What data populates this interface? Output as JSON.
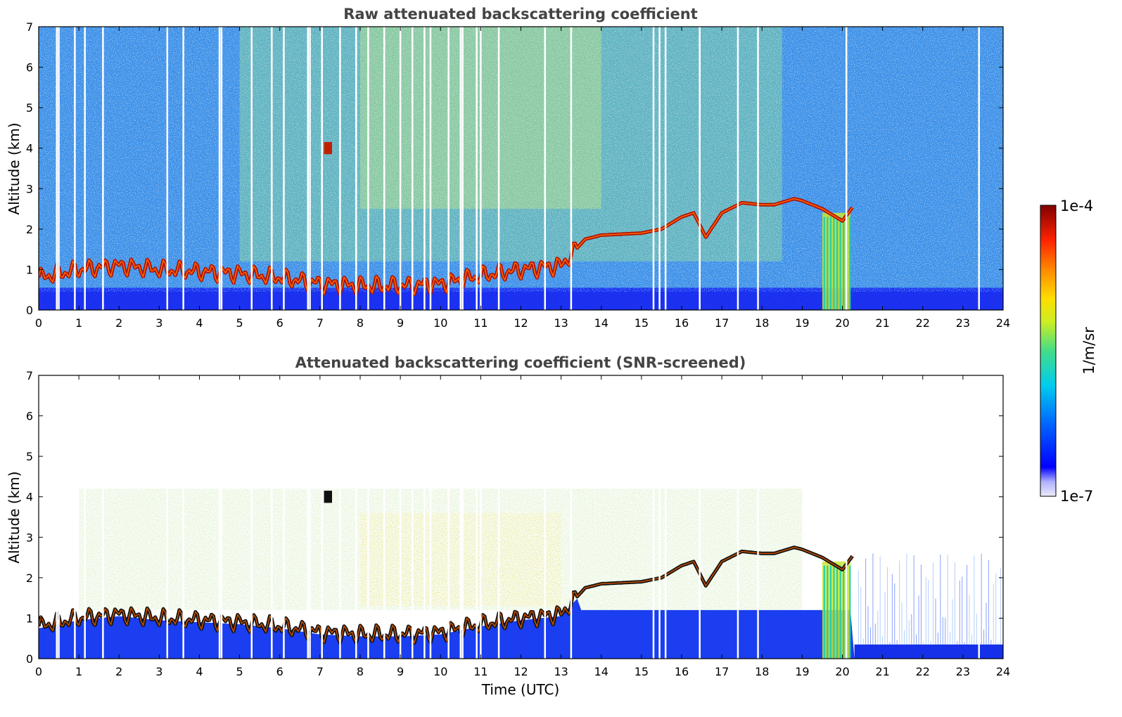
{
  "chart_data": [
    {
      "type": "heatmap",
      "title": "Raw attenuated backscattering coefficient",
      "xlabel": "",
      "ylabel": "Altitude (km)",
      "xlim": [
        0,
        24
      ],
      "ylim": [
        0,
        7
      ],
      "xticks": [
        "0",
        "1",
        "2",
        "3",
        "4",
        "5",
        "6",
        "7",
        "8",
        "9",
        "10",
        "11",
        "12",
        "13",
        "14",
        "15",
        "16",
        "17",
        "18",
        "19",
        "20",
        "21",
        "22",
        "23",
        "24"
      ],
      "yticks": [
        "0",
        "1",
        "2",
        "3",
        "4",
        "5",
        "6",
        "7"
      ],
      "screened": false,
      "layer_altitude_km": {
        "time": [
          0,
          1,
          2,
          3,
          4,
          5,
          6,
          7,
          8,
          9,
          10,
          11,
          12,
          13,
          13.6,
          14,
          15,
          15.5,
          16,
          16.3,
          16.6,
          17,
          17.5,
          18,
          18.3,
          18.8,
          19,
          19.5,
          20,
          20.3
        ],
        "altitude": [
          0.8,
          1.0,
          1.1,
          1.0,
          0.95,
          0.9,
          0.8,
          0.65,
          0.6,
          0.6,
          0.65,
          0.85,
          1.0,
          1.1,
          1.75,
          1.85,
          1.9,
          2.0,
          2.3,
          2.4,
          1.8,
          2.4,
          2.65,
          2.6,
          2.6,
          2.75,
          2.7,
          2.5,
          2.2,
          2.6
        ]
      },
      "dropout_times": [
        0.45,
        0.5,
        0.9,
        1.15,
        1.6,
        3.2,
        3.6,
        4.5,
        4.55,
        5.3,
        5.8,
        6.1,
        6.7,
        6.75,
        7.05,
        7.5,
        7.9,
        8.2,
        8.6,
        9.0,
        9.3,
        9.6,
        9.75,
        10.2,
        10.5,
        10.55,
        10.9,
        11.0,
        11.45,
        12.6,
        13.25,
        15.3,
        15.45,
        15.6,
        16.45,
        17.4,
        17.9,
        20.1,
        23.4
      ]
    },
    {
      "type": "heatmap",
      "title": "Attenuated backscattering coefficient (SNR-screened)",
      "xlabel": "Time (UTC)",
      "ylabel": "Altitude (km)",
      "xlim": [
        0,
        24
      ],
      "ylim": [
        0,
        7
      ],
      "xticks": [
        "0",
        "1",
        "2",
        "3",
        "4",
        "5",
        "6",
        "7",
        "8",
        "9",
        "10",
        "11",
        "12",
        "13",
        "14",
        "15",
        "16",
        "17",
        "18",
        "19",
        "20",
        "21",
        "22",
        "23",
        "24"
      ],
      "yticks": [
        "0",
        "1",
        "2",
        "3",
        "4",
        "5",
        "6",
        "7"
      ],
      "screened": true,
      "layer_altitude_km": {
        "time": [
          0,
          1,
          2,
          3,
          4,
          5,
          6,
          7,
          8,
          9,
          10,
          11,
          12,
          13,
          13.6,
          14,
          15,
          15.5,
          16,
          16.3,
          16.6,
          17,
          17.5,
          18,
          18.3,
          18.8,
          19,
          19.5,
          20,
          20.3
        ],
        "altitude": [
          0.8,
          1.0,
          1.1,
          1.0,
          0.95,
          0.9,
          0.8,
          0.65,
          0.6,
          0.6,
          0.65,
          0.85,
          1.0,
          1.1,
          1.75,
          1.85,
          1.9,
          2.0,
          2.3,
          2.4,
          1.8,
          2.4,
          2.65,
          2.6,
          2.6,
          2.75,
          2.7,
          2.5,
          2.2,
          2.6
        ]
      }
    }
  ],
  "colorbar": {
    "label": "1/m/sr",
    "max_label": "1e-4",
    "min_label": "1e-7",
    "scale": "log",
    "colors": [
      "#e8e8f8",
      "#0000ff",
      "#0088ff",
      "#00ccee",
      "#44dd88",
      "#ccee22",
      "#ffdd00",
      "#ff8800",
      "#ff2200",
      "#aa0000",
      "#800000"
    ]
  }
}
